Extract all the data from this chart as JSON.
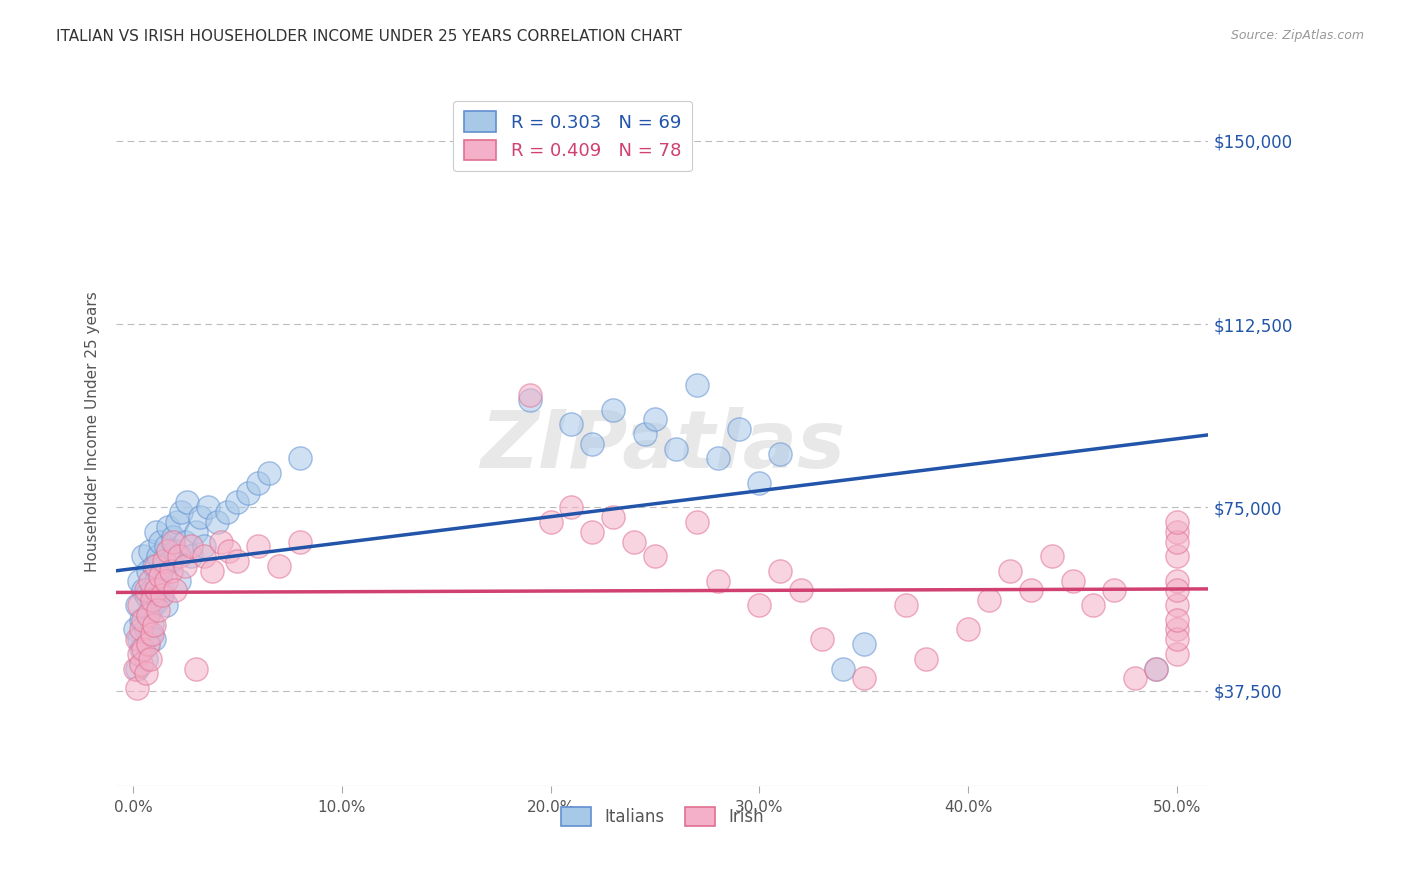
{
  "title": "ITALIAN VS IRISH HOUSEHOLDER INCOME UNDER 25 YEARS CORRELATION CHART",
  "source": "Source: ZipAtlas.com",
  "xlabel_ticks": [
    "0.0%",
    "10.0%",
    "20.0%",
    "30.0%",
    "40.0%",
    "50.0%"
  ],
  "xlabel_vals": [
    0.0,
    0.1,
    0.2,
    0.3,
    0.4,
    0.5
  ],
  "ylabel_ticks": [
    "$37,500",
    "$75,000",
    "$112,500",
    "$150,000"
  ],
  "ylabel_vals": [
    37500,
    75000,
    112500,
    150000
  ],
  "xlim": [
    -0.008,
    0.515
  ],
  "ylim": [
    18000,
    163000
  ],
  "italian_color": "#a8c8e8",
  "irish_color": "#f4b0c8",
  "italian_edge_color": "#6090d0",
  "irish_edge_color": "#e07090",
  "italian_line_color": "#2255aa",
  "irish_line_color": "#d04070",
  "watermark": "ZIPatlas",
  "legend_italian_label": "R = 0.303   N = 69",
  "legend_irish_label": "R = 0.409   N = 78",
  "italians_label": "Italians",
  "irish_label": "Irish",
  "ylabel": "Householder Income Under 25 years",
  "italian_x": [
    0.001,
    0.002,
    0.002,
    0.003,
    0.003,
    0.004,
    0.004,
    0.005,
    0.005,
    0.006,
    0.006,
    0.006,
    0.007,
    0.007,
    0.007,
    0.008,
    0.008,
    0.008,
    0.009,
    0.009,
    0.01,
    0.01,
    0.01,
    0.011,
    0.011,
    0.012,
    0.012,
    0.013,
    0.013,
    0.014,
    0.015,
    0.016,
    0.016,
    0.017,
    0.018,
    0.019,
    0.02,
    0.021,
    0.022,
    0.023,
    0.025,
    0.026,
    0.028,
    0.03,
    0.032,
    0.034,
    0.036,
    0.04,
    0.045,
    0.05,
    0.055,
    0.06,
    0.065,
    0.08,
    0.19,
    0.21,
    0.22,
    0.23,
    0.245,
    0.25,
    0.26,
    0.27,
    0.28,
    0.29,
    0.3,
    0.31,
    0.34,
    0.35,
    0.49
  ],
  "italian_y": [
    50000,
    42000,
    55000,
    48000,
    60000,
    52000,
    46000,
    58000,
    65000,
    50000,
    44000,
    57000,
    53000,
    47000,
    62000,
    54000,
    49000,
    66000,
    51000,
    58000,
    55000,
    63000,
    48000,
    60000,
    70000,
    56000,
    65000,
    61000,
    68000,
    58000,
    63000,
    67000,
    55000,
    71000,
    64000,
    69000,
    66000,
    72000,
    60000,
    74000,
    68000,
    76000,
    65000,
    70000,
    73000,
    67000,
    75000,
    72000,
    74000,
    76000,
    78000,
    80000,
    82000,
    85000,
    97000,
    92000,
    88000,
    95000,
    90000,
    93000,
    87000,
    100000,
    85000,
    91000,
    80000,
    86000,
    42000,
    47000,
    42000
  ],
  "irish_x": [
    0.001,
    0.002,
    0.002,
    0.003,
    0.003,
    0.004,
    0.004,
    0.005,
    0.005,
    0.006,
    0.006,
    0.007,
    0.007,
    0.008,
    0.008,
    0.009,
    0.009,
    0.01,
    0.011,
    0.011,
    0.012,
    0.013,
    0.014,
    0.015,
    0.016,
    0.017,
    0.018,
    0.019,
    0.02,
    0.022,
    0.025,
    0.028,
    0.03,
    0.034,
    0.038,
    0.042,
    0.046,
    0.05,
    0.06,
    0.07,
    0.08,
    0.19,
    0.2,
    0.21,
    0.22,
    0.23,
    0.24,
    0.25,
    0.27,
    0.28,
    0.3,
    0.31,
    0.32,
    0.33,
    0.35,
    0.37,
    0.38,
    0.4,
    0.41,
    0.42,
    0.43,
    0.44,
    0.45,
    0.46,
    0.47,
    0.48,
    0.49,
    0.5,
    0.5,
    0.5,
    0.5,
    0.5,
    0.5,
    0.5,
    0.5,
    0.5,
    0.5,
    0.5
  ],
  "irish_y": [
    42000,
    48000,
    38000,
    45000,
    55000,
    43000,
    50000,
    46000,
    52000,
    41000,
    58000,
    47000,
    53000,
    44000,
    60000,
    49000,
    56000,
    51000,
    58000,
    63000,
    54000,
    61000,
    57000,
    64000,
    60000,
    66000,
    62000,
    68000,
    58000,
    65000,
    63000,
    67000,
    42000,
    65000,
    62000,
    68000,
    66000,
    64000,
    67000,
    63000,
    68000,
    98000,
    72000,
    75000,
    70000,
    73000,
    68000,
    65000,
    72000,
    60000,
    55000,
    62000,
    58000,
    48000,
    40000,
    55000,
    44000,
    50000,
    56000,
    62000,
    58000,
    65000,
    60000,
    55000,
    58000,
    40000,
    42000,
    70000,
    50000,
    55000,
    45000,
    60000,
    48000,
    65000,
    52000,
    68000,
    58000,
    72000
  ]
}
